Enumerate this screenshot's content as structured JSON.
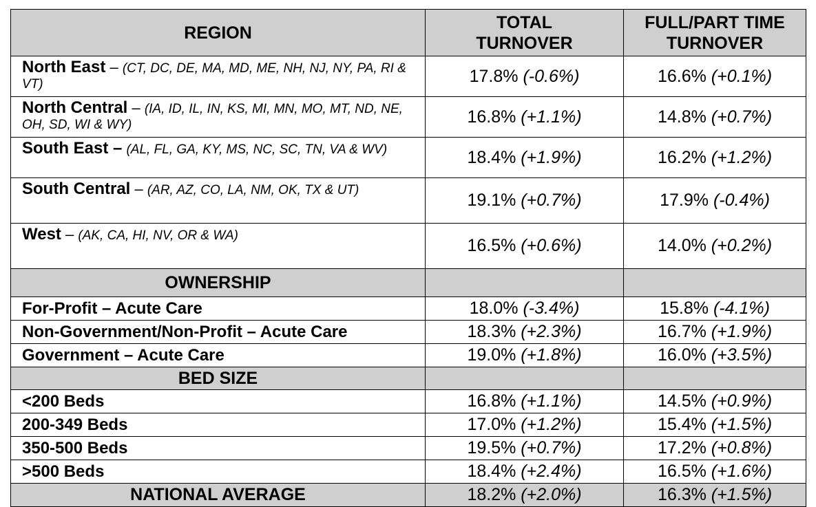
{
  "headers": {
    "region": "REGION",
    "total_line1": "TOTAL",
    "total_line2": "TURNOVER",
    "fullpart_line1": "FULL/PART TIME",
    "fullpart_line2": "TURNOVER"
  },
  "regions": [
    {
      "name": "North East",
      "dash": " – ",
      "states": "(CT, DC, DE, MA, MD, ME, NH, NJ, NY, PA, RI & VT)",
      "total": "17.8%",
      "total_delta": "(-0.6%)",
      "fullpart": "16.6%",
      "fullpart_delta": "(+0.1%)"
    },
    {
      "name": "North Central",
      "dash": " – ",
      "states": "(IA, ID, IL, IN, KS, MI, MN, MO, MT, ND, NE, OH, SD, WI & WY)",
      "total": "16.8%",
      "total_delta": "(+1.1%)",
      "fullpart": "14.8%",
      "fullpart_delta": "(+0.7%)"
    },
    {
      "name": "South East –",
      "dash": " ",
      "states": "(AL, FL, GA, KY, MS, NC, SC, TN, VA & WV)",
      "total": "18.4%",
      "total_delta": "(+1.9%)",
      "fullpart": "16.2%",
      "fullpart_delta": "(+1.2%)"
    },
    {
      "name": "South Central",
      "dash": " – ",
      "states": "(AR, AZ, CO, LA, NM, OK, TX & UT)",
      "total": "19.1%",
      "total_delta": "(+0.7%)",
      "fullpart": "17.9%",
      "fullpart_delta": "(-0.4%)"
    },
    {
      "name": "West",
      "dash": " – ",
      "states": "(AK, CA, HI, NV, OR & WA)",
      "total": "16.5%",
      "total_delta": "(+0.6%)",
      "fullpart": "14.0%",
      "fullpart_delta": "(+0.2%)"
    }
  ],
  "ownership": {
    "title": "OWNERSHIP",
    "rows": [
      {
        "name": "For-Profit – Acute Care",
        "total": "18.0%",
        "total_delta": "(-3.4%)",
        "fullpart": "15.8%",
        "fullpart_delta": "(-4.1%)"
      },
      {
        "name": "Non-Government/Non-Profit – Acute Care",
        "total": "18.3%",
        "total_delta": "(+2.3%)",
        "fullpart": "16.7%",
        "fullpart_delta": "(+1.9%)"
      },
      {
        "name": "Government – Acute Care",
        "total": "19.0%",
        "total_delta": "(+1.8%)",
        "fullpart": "16.0%",
        "fullpart_delta": "(+3.5%)"
      }
    ]
  },
  "bed_size": {
    "title": "BED SIZE",
    "rows": [
      {
        "name": "<200 Beds",
        "total": "16.8%",
        "total_delta": "(+1.1%)",
        "fullpart": "14.5%",
        "fullpart_delta": "(+0.9%)"
      },
      {
        "name": "200-349 Beds",
        "total": "17.0%",
        "total_delta": "(+1.2%)",
        "fullpart": "15.4%",
        "fullpart_delta": "(+1.5%)"
      },
      {
        "name": "350-500 Beds",
        "total": "19.5%",
        "total_delta": "(+0.7%)",
        "fullpart": "17.2%",
        "fullpart_delta": "(+0.8%)"
      },
      {
        "name": ">500 Beds",
        "total": "18.4%",
        "total_delta": "(+2.4%)",
        "fullpart": "16.5%",
        "fullpart_delta": "(+1.6%)"
      }
    ]
  },
  "national": {
    "name": "NATIONAL AVERAGE",
    "total": "18.2%",
    "total_delta": "(+2.0%)",
    "fullpart": "16.3%",
    "fullpart_delta": "(+1.5%)"
  },
  "colors": {
    "header_fill": "#cfcfcf",
    "border": "#000000"
  }
}
